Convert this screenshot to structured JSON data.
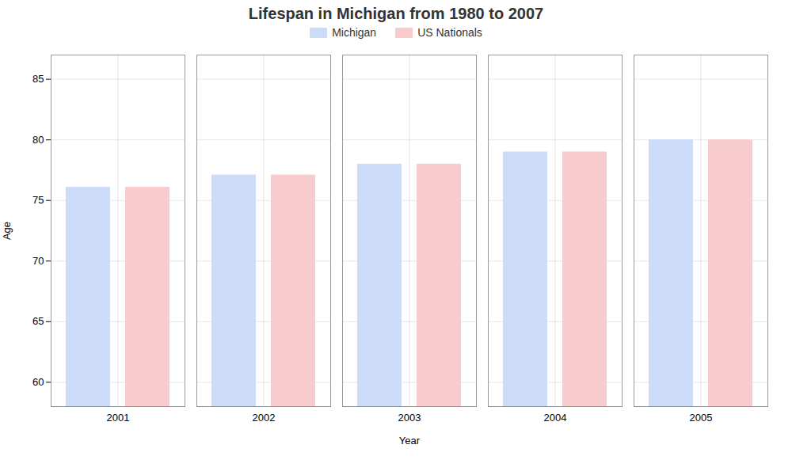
{
  "chart_data": {
    "type": "bar",
    "title": "Lifespan in Michigan from 1980 to 2007",
    "xlabel": "Year",
    "ylabel": "Age",
    "categories": [
      "2001",
      "2002",
      "2003",
      "2004",
      "2005"
    ],
    "series": [
      {
        "name": "Michigan",
        "color": "#ccdcf8",
        "values": [
          76.1,
          77.1,
          78.0,
          79.0,
          80.0
        ]
      },
      {
        "name": "US Nationals",
        "color": "#f8cccc",
        "values": [
          76.1,
          77.1,
          78.0,
          79.0,
          80.0
        ]
      }
    ],
    "ylim": [
      58,
      87
    ],
    "yticks": [
      60,
      65,
      70,
      75,
      80,
      85
    ],
    "grid": true,
    "legend": "top"
  }
}
